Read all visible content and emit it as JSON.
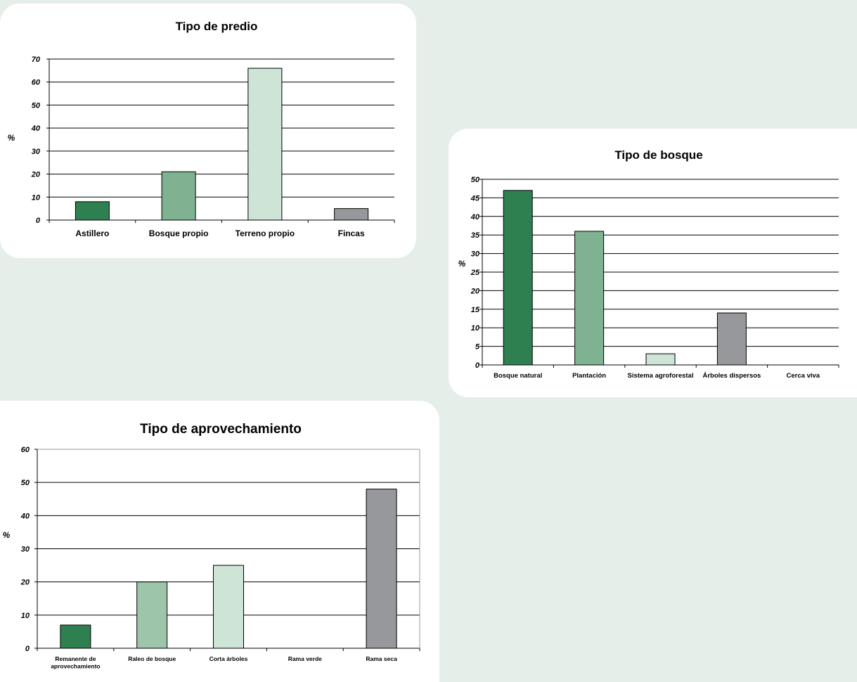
{
  "chart_data": [
    {
      "type": "bar",
      "title": "Tipo de predio",
      "ylabel": "%",
      "xlabel": "",
      "categories": [
        "Astillero",
        "Bosque propio",
        "Terreno propio",
        "Fincas"
      ],
      "values": [
        8,
        21,
        66,
        5
      ],
      "colors": [
        "#2e8050",
        "#7fb290",
        "#cde4d6",
        "#97989b"
      ],
      "ylim": [
        0,
        70
      ],
      "yticks": [
        0,
        10,
        20,
        30,
        40,
        50,
        60,
        70
      ],
      "grid": true
    },
    {
      "type": "bar",
      "title": "Tipo de bosque",
      "ylabel": "%",
      "xlabel": "",
      "categories": [
        "Bosque natural",
        "Plantación",
        "Sistema agroforestal",
        "Árboles dispersos",
        "Cerca viva"
      ],
      "values": [
        47,
        36,
        3,
        14,
        0
      ],
      "colors": [
        "#2e8050",
        "#7fb290",
        "#cde4d6",
        "#97989b",
        "#97989b"
      ],
      "ylim": [
        0,
        50
      ],
      "yticks": [
        0,
        5,
        10,
        15,
        20,
        25,
        30,
        35,
        40,
        45,
        50
      ],
      "grid": true
    },
    {
      "type": "bar",
      "title": "Tipo de aprovechamiento",
      "ylabel": "%",
      "xlabel": "",
      "categories": [
        "Remanente de aprovechamiento",
        "Raleo de bosque",
        "Corta árboles",
        "Rama verde",
        "Rama seca"
      ],
      "values": [
        7,
        20,
        25,
        0,
        48
      ],
      "colors": [
        "#2e8050",
        "#9cc5aa",
        "#cde4d6",
        "#cde4d6",
        "#97989b"
      ],
      "ylim": [
        0,
        60
      ],
      "yticks": [
        0,
        10,
        20,
        30,
        40,
        50,
        60
      ],
      "grid": true
    }
  ]
}
